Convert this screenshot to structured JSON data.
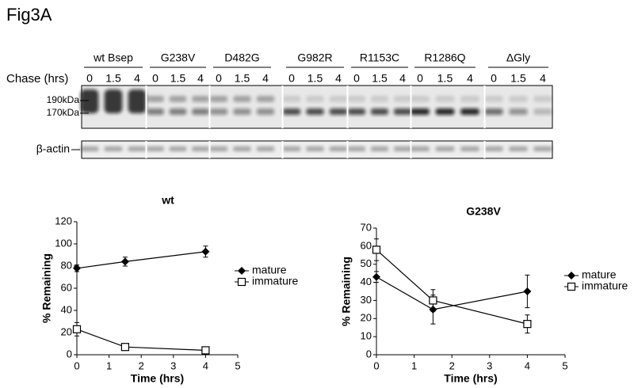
{
  "figure_label": "Fig3A",
  "blot": {
    "lanes": [
      "wt Bsep",
      "G238V",
      "D482G",
      "G982R",
      "R1153C",
      "R1286Q",
      "ΔGly"
    ],
    "chase_label": "Chase (hrs)",
    "timepoints": [
      "0",
      "1.5",
      "4"
    ],
    "markers": [
      "190kDa",
      "170kDa"
    ],
    "actin_label": "β-actin"
  },
  "chart_data": [
    {
      "type": "line",
      "title": "wt",
      "xlabel": "Time (hrs)",
      "ylabel": "% Remaining",
      "x": [
        0,
        1.5,
        4
      ],
      "series": [
        {
          "name": "mature",
          "color": "#000000",
          "marker": "diamond",
          "values": [
            78,
            84,
            93
          ],
          "errors": [
            3,
            4,
            5
          ]
        },
        {
          "name": "immature",
          "color": "#000000",
          "marker": "square",
          "values": [
            23,
            7,
            4
          ],
          "errors": [
            6,
            3,
            3
          ]
        }
      ],
      "xlim": [
        0,
        5
      ],
      "xticks": [
        0,
        1,
        2,
        3,
        4,
        5
      ],
      "ylim": [
        0,
        120
      ],
      "yticks": [
        0,
        20,
        40,
        60,
        80,
        100,
        120
      ],
      "grid": false
    },
    {
      "type": "line",
      "title": "G238V",
      "xlabel": "Time (hrs)",
      "ylabel": "% Remaining",
      "x": [
        0,
        1.5,
        4
      ],
      "series": [
        {
          "name": "mature",
          "color": "#000000",
          "marker": "diamond",
          "values": [
            43,
            25,
            35
          ],
          "errors": [
            3,
            8,
            9
          ]
        },
        {
          "name": "immature",
          "color": "#000000",
          "marker": "square",
          "values": [
            58,
            30,
            17
          ],
          "errors": [
            6,
            6,
            5
          ]
        }
      ],
      "xlim": [
        0,
        5
      ],
      "xticks": [
        0,
        1,
        2,
        3,
        4,
        5
      ],
      "ylim": [
        0,
        70
      ],
      "yticks": [
        0,
        10,
        20,
        30,
        40,
        50,
        60,
        70
      ],
      "grid": false
    }
  ]
}
